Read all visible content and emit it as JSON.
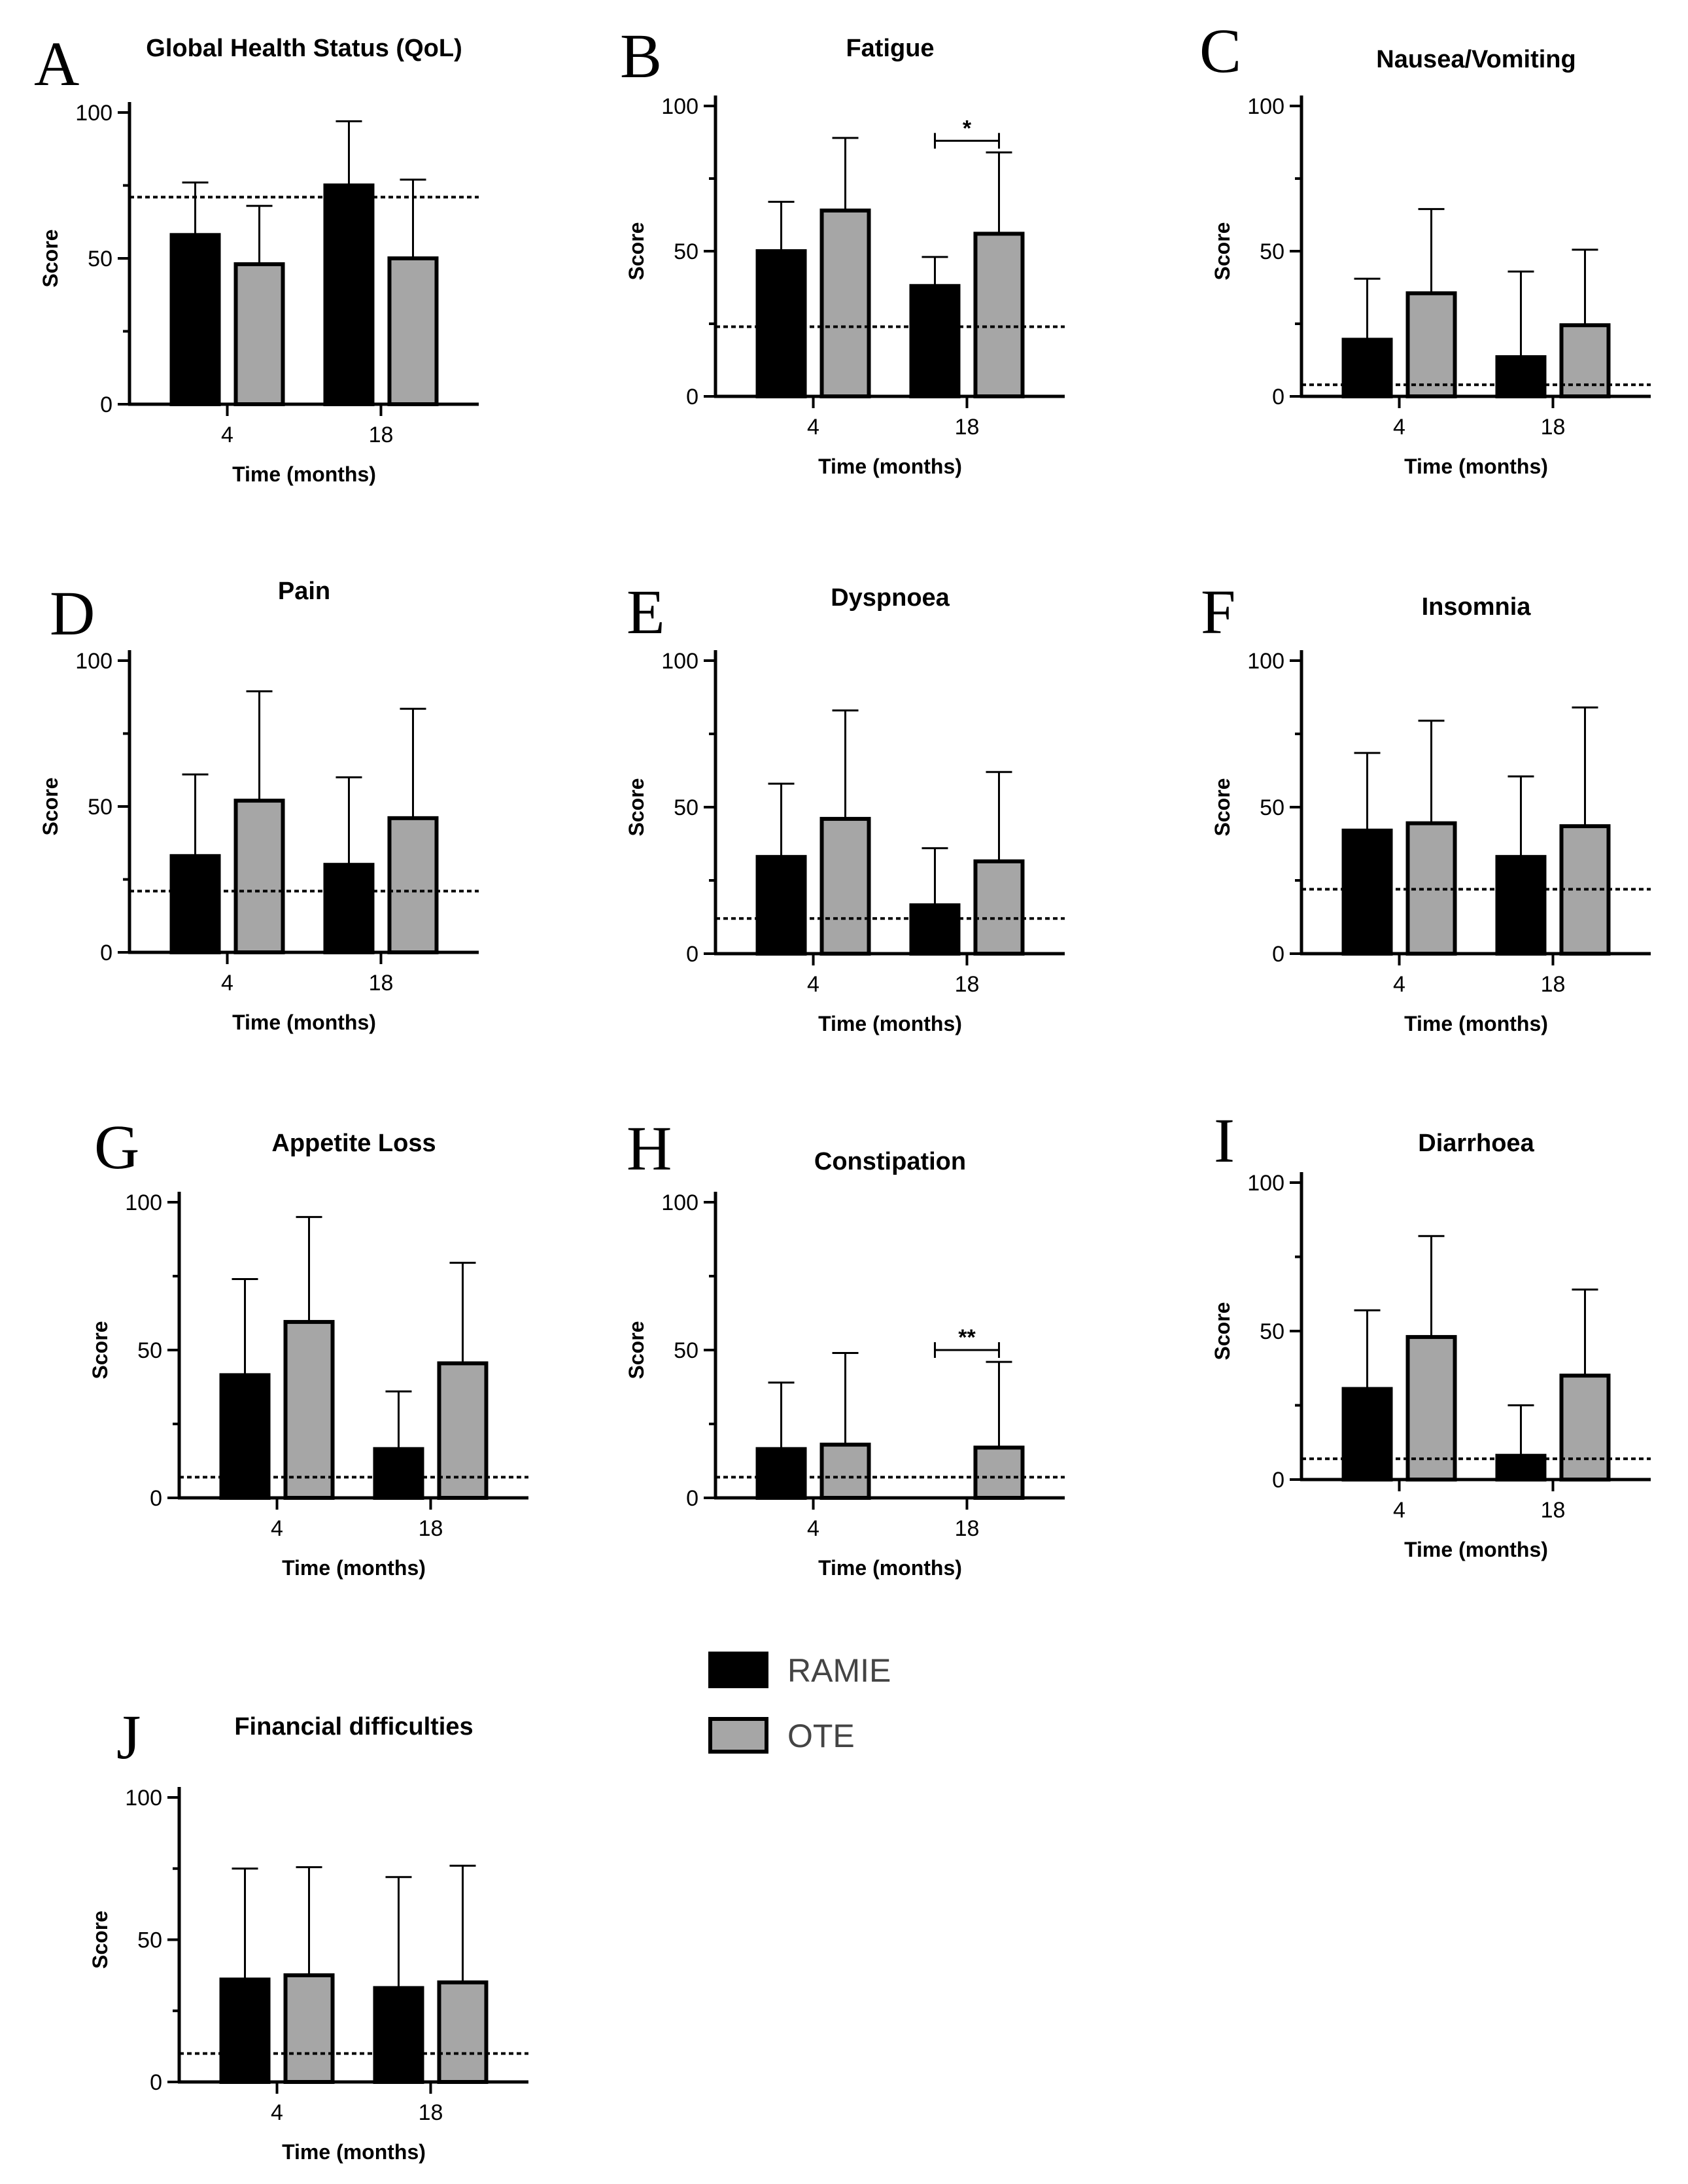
{
  "legend": {
    "entries": [
      {
        "label": "RAMIE",
        "color": "#000000"
      },
      {
        "label": "OTE",
        "color": "#a6a6a6"
      }
    ]
  },
  "chart_data": [
    {
      "type": "bar",
      "letter": "A",
      "title": "Global Health Status (QoL)",
      "xlabel": "Time (months)",
      "ylabel": "Score",
      "categories": [
        "4",
        "18"
      ],
      "ylim": [
        0,
        100
      ],
      "yticks": [
        "0",
        "50",
        "100"
      ],
      "series": [
        {
          "name": "RAMIE",
          "values": [
            58,
            75
          ],
          "errors": [
            18,
            22
          ]
        },
        {
          "name": "OTE",
          "values": [
            48,
            50
          ],
          "errors": [
            20,
            27
          ]
        }
      ],
      "reference_line": 71,
      "significance": null
    },
    {
      "type": "bar",
      "letter": "B",
      "title": "Fatigue",
      "xlabel": "Time (months)",
      "ylabel": "Score",
      "categories": [
        "4",
        "18"
      ],
      "ylim": [
        0,
        100
      ],
      "yticks": [
        "0",
        "50",
        "100"
      ],
      "series": [
        {
          "name": "RAMIE",
          "values": [
            50,
            38
          ],
          "errors": [
            17,
            10
          ]
        },
        {
          "name": "OTE",
          "values": [
            64,
            56
          ],
          "errors": [
            25,
            28
          ]
        }
      ],
      "reference_line": 24,
      "significance": {
        "label": "*",
        "category": "18",
        "y": 88
      }
    },
    {
      "type": "bar",
      "letter": "C",
      "title": "Nausea/Vomiting",
      "xlabel": "Time (months)",
      "ylabel": "Score",
      "categories": [
        "4",
        "18"
      ],
      "ylim": [
        0,
        100
      ],
      "yticks": [
        "0",
        "50",
        "100"
      ],
      "series": [
        {
          "name": "RAMIE",
          "values": [
            19.5,
            13.5
          ],
          "errors": [
            21,
            29.5
          ]
        },
        {
          "name": "OTE",
          "values": [
            35.5,
            24.5
          ],
          "errors": [
            29,
            26
          ]
        }
      ],
      "reference_line": 4,
      "significance": null
    },
    {
      "type": "bar",
      "letter": "D",
      "title": "Pain",
      "xlabel": "Time (months)",
      "ylabel": "Score",
      "categories": [
        "4",
        "18"
      ],
      "ylim": [
        0,
        100
      ],
      "yticks": [
        "0",
        "50",
        "100"
      ],
      "series": [
        {
          "name": "RAMIE",
          "values": [
            33,
            30
          ],
          "errors": [
            28,
            30
          ]
        },
        {
          "name": "OTE",
          "values": [
            52,
            46
          ],
          "errors": [
            37.5,
            37.5
          ]
        }
      ],
      "reference_line": 21,
      "significance": null
    },
    {
      "type": "bar",
      "letter": "E",
      "title": "Dyspnoea",
      "xlabel": "Time (months)",
      "ylabel": "Score",
      "categories": [
        "4",
        "18"
      ],
      "ylim": [
        0,
        100
      ],
      "yticks": [
        "0",
        "50",
        "100"
      ],
      "series": [
        {
          "name": "RAMIE",
          "values": [
            33,
            16.5
          ],
          "errors": [
            25,
            19.5
          ]
        },
        {
          "name": "OTE",
          "values": [
            46,
            31.5
          ],
          "errors": [
            37,
            30.5
          ]
        }
      ],
      "reference_line": 12,
      "significance": null
    },
    {
      "type": "bar",
      "letter": "F",
      "title": "Insomnia",
      "xlabel": "Time (months)",
      "ylabel": "Score",
      "categories": [
        "4",
        "18"
      ],
      "ylim": [
        0,
        100
      ],
      "yticks": [
        "0",
        "50",
        "100"
      ],
      "series": [
        {
          "name": "RAMIE",
          "values": [
            42,
            33
          ],
          "errors": [
            26.5,
            27.5
          ]
        },
        {
          "name": "OTE",
          "values": [
            44.5,
            43.5
          ],
          "errors": [
            35,
            40.5
          ]
        }
      ],
      "reference_line": 22,
      "significance": null
    },
    {
      "type": "bar",
      "letter": "G",
      "title": "Appetite Loss",
      "xlabel": "Time (months)",
      "ylabel": "Score",
      "categories": [
        "4",
        "18"
      ],
      "ylim": [
        0,
        100
      ],
      "yticks": [
        "0",
        "50",
        "100"
      ],
      "series": [
        {
          "name": "RAMIE",
          "values": [
            41.5,
            16.5
          ],
          "errors": [
            32.5,
            19.5
          ]
        },
        {
          "name": "OTE",
          "values": [
            59.5,
            45.5
          ],
          "errors": [
            35.5,
            34
          ]
        }
      ],
      "reference_line": 7,
      "significance": null
    },
    {
      "type": "bar",
      "letter": "H",
      "title": "Constipation",
      "xlabel": "Time (months)",
      "ylabel": "Score",
      "categories": [
        "4",
        "18"
      ],
      "ylim": [
        0,
        100
      ],
      "yticks": [
        "0",
        "50",
        "100"
      ],
      "series": [
        {
          "name": "RAMIE",
          "values": [
            16.5,
            0
          ],
          "errors": [
            22.5,
            0
          ]
        },
        {
          "name": "OTE",
          "values": [
            18,
            17
          ],
          "errors": [
            31,
            29
          ]
        }
      ],
      "reference_line": 7,
      "significance": {
        "label": "**",
        "category": "18",
        "y": 50
      }
    },
    {
      "type": "bar",
      "letter": "I",
      "title": "Diarrhoea",
      "xlabel": "Time (months)",
      "ylabel": "Score",
      "categories": [
        "4",
        "18"
      ],
      "ylim": [
        0,
        100
      ],
      "yticks": [
        "0",
        "50",
        "100"
      ],
      "series": [
        {
          "name": "RAMIE",
          "values": [
            30.5,
            8
          ],
          "errors": [
            26.5,
            17
          ]
        },
        {
          "name": "OTE",
          "values": [
            48,
            35
          ],
          "errors": [
            34,
            29
          ]
        }
      ],
      "reference_line": 7,
      "significance": null
    },
    {
      "type": "bar",
      "letter": "J",
      "title": "Financial difficulties",
      "xlabel": "Time (months)",
      "ylabel": "Score",
      "categories": [
        "4",
        "18"
      ],
      "ylim": [
        0,
        100
      ],
      "yticks": [
        "0",
        "50",
        "100"
      ],
      "series": [
        {
          "name": "RAMIE",
          "values": [
            36,
            33
          ],
          "errors": [
            39,
            39
          ]
        },
        {
          "name": "OTE",
          "values": [
            37.5,
            35
          ],
          "errors": [
            38,
            41
          ]
        }
      ],
      "reference_line": 10,
      "significance": null
    }
  ]
}
